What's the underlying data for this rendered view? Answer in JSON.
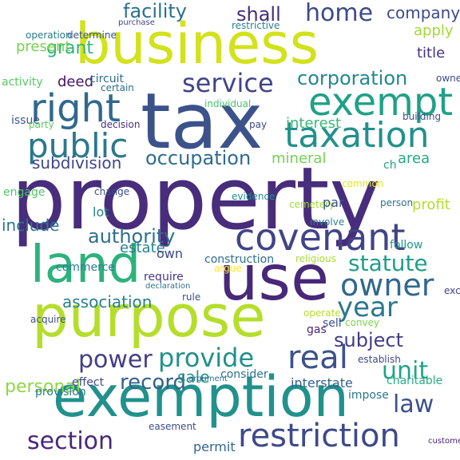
{
  "word_cloud": {
    "words": [
      {
        "text": "property",
        "color": "#472d7b"
      },
      {
        "text": "tax",
        "color": "#3b528b"
      },
      {
        "text": "business",
        "color": "#d2e21b"
      },
      {
        "text": "purpose",
        "color": "#b5de2b"
      },
      {
        "text": "use",
        "color": "#482878"
      },
      {
        "text": "exemption",
        "color": "#21918c"
      },
      {
        "text": "land",
        "color": "#2db27d"
      },
      {
        "text": "covenant",
        "color": "#414487"
      },
      {
        "text": "exempt",
        "color": "#1fa187"
      },
      {
        "text": "right",
        "color": "#31688e"
      },
      {
        "text": "taxation",
        "color": "#21918c"
      },
      {
        "text": "restriction",
        "color": "#3e4989"
      },
      {
        "text": "public",
        "color": "#2a788e"
      },
      {
        "text": "service",
        "color": "#414487"
      },
      {
        "text": "owner",
        "color": "#31688e"
      },
      {
        "text": "real",
        "color": "#3b528b"
      },
      {
        "text": "section",
        "color": "#482878"
      },
      {
        "text": "provide",
        "color": "#21918c"
      },
      {
        "text": "year",
        "color": "#2a788e"
      },
      {
        "text": "power",
        "color": "#433e85"
      },
      {
        "text": "unit",
        "color": "#20a486"
      },
      {
        "text": "law",
        "color": "#3b528b"
      },
      {
        "text": "statute",
        "color": "#1f9e89"
      },
      {
        "text": "home",
        "color": "#3e4a89"
      },
      {
        "text": "corporation",
        "color": "#23898e"
      },
      {
        "text": "facility",
        "color": "#2c718e"
      },
      {
        "text": "shall",
        "color": "#472c7a"
      },
      {
        "text": "occupation",
        "color": "#2f6c8e"
      },
      {
        "text": "authority",
        "color": "#2e6f8e"
      },
      {
        "text": "record",
        "color": "#34618d"
      },
      {
        "text": "subject",
        "color": "#433d84"
      },
      {
        "text": "association",
        "color": "#277f8e"
      },
      {
        "text": "subdivision",
        "color": "#404588"
      },
      {
        "text": "interest",
        "color": "#38b977"
      },
      {
        "text": "estate",
        "color": "#26828e"
      },
      {
        "text": "mineral",
        "color": "#75d054"
      },
      {
        "text": "sale",
        "color": "#20928c"
      },
      {
        "text": "personal",
        "color": "#8fd744"
      },
      {
        "text": "include",
        "color": "#2a768e"
      },
      {
        "text": "company",
        "color": "#3e4989"
      },
      {
        "text": "grant",
        "color": "#2fb47c"
      },
      {
        "text": "title",
        "color": "#46337f"
      },
      {
        "text": "apply",
        "color": "#a2da37"
      },
      {
        "text": "present",
        "color": "#7ad151"
      },
      {
        "text": "area",
        "color": "#23a983"
      },
      {
        "text": "profit",
        "color": "#b5de2b"
      },
      {
        "text": "interstate",
        "color": "#35608d"
      },
      {
        "text": "permit",
        "color": "#31668e"
      },
      {
        "text": "construction",
        "color": "#2e6e8e"
      },
      {
        "text": "lot",
        "color": "#26828e"
      },
      {
        "text": "own",
        "color": "#3f4889"
      },
      {
        "text": "require",
        "color": "#443983"
      },
      {
        "text": "commerce",
        "color": "#277e8e"
      },
      {
        "text": "consider",
        "color": "#2c738e"
      },
      {
        "text": "sell",
        "color": "#3b528b"
      },
      {
        "text": "effect",
        "color": "#3f4788"
      },
      {
        "text": "provision",
        "color": "#29798e"
      },
      {
        "text": "impose",
        "color": "#2a778e"
      },
      {
        "text": "charitable",
        "color": "#26ad81"
      },
      {
        "text": "gas",
        "color": "#482576"
      },
      {
        "text": "follow",
        "color": "#1f998a"
      },
      {
        "text": "engage",
        "color": "#52c569"
      },
      {
        "text": "activity",
        "color": "#58c765"
      },
      {
        "text": "issue",
        "color": "#39568c"
      },
      {
        "text": "deed",
        "color": "#471365"
      },
      {
        "text": "circuit",
        "color": "#2e6e8e"
      },
      {
        "text": "party",
        "color": "#5ec962"
      },
      {
        "text": "decision",
        "color": "#46307e"
      },
      {
        "text": "change",
        "color": "#3c4f8a"
      },
      {
        "text": "argue",
        "color": "#fde725"
      },
      {
        "text": "rule",
        "color": "#3e4c8a"
      },
      {
        "text": "convey",
        "color": "#7fd34e"
      },
      {
        "text": "determine",
        "color": "#3b518b"
      },
      {
        "text": "operation",
        "color": "#297b8e"
      },
      {
        "text": "ownership",
        "color": "#3f4889"
      },
      {
        "text": "individual",
        "color": "#4ac16d"
      },
      {
        "text": "certain",
        "color": "#2e6e8e"
      },
      {
        "text": "evidence",
        "color": "#228d8d"
      },
      {
        "text": "religious",
        "color": "#a8db34"
      },
      {
        "text": "cemetery",
        "color": "#a0da39"
      },
      {
        "text": "common",
        "color": "#e5e419"
      },
      {
        "text": "person",
        "color": "#2c728e"
      },
      {
        "text": "involve",
        "color": "#25838e"
      },
      {
        "text": "par",
        "color": "#3b528b"
      },
      {
        "text": "ch",
        "color": "#20a386"
      },
      {
        "text": "acquire",
        "color": "#3d4e8a"
      },
      {
        "text": "establish",
        "color": "#3e4a89"
      },
      {
        "text": "declaration",
        "color": "#2d718e"
      },
      {
        "text": "argument",
        "color": "#2e6f8e"
      },
      {
        "text": "easement",
        "color": "#3e4c8a"
      },
      {
        "text": "operate",
        "color": "#b8de29"
      },
      {
        "text": "exclusively",
        "color": "#414287"
      },
      {
        "text": "pay",
        "color": "#3f4788"
      },
      {
        "text": "building",
        "color": "#3c4f8a"
      },
      {
        "text": "customer",
        "color": "#482475"
      },
      {
        "text": "purchase",
        "color": "#3f4889"
      },
      {
        "text": "restrictive",
        "color": "#277f8e"
      },
      {
        "text": "determine",
        "color": "#3b518b"
      }
    ]
  }
}
